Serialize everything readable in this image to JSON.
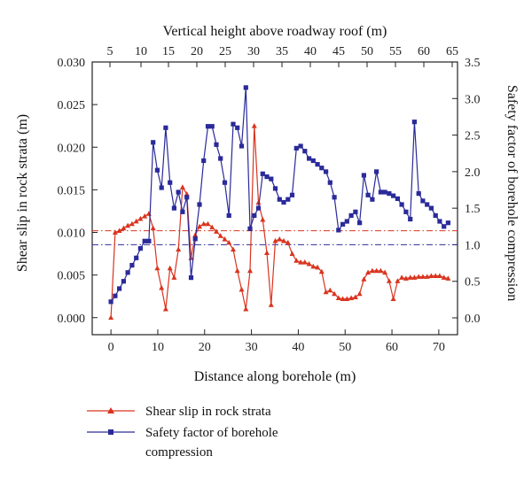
{
  "chart_data": {
    "type": "line",
    "xlabel": "Distance along borehole (m)",
    "x2label": "Vertical height above roadway roof (m)",
    "ylabel": "Shear slip in rock strata (m)",
    "y2label": "Safety factor of borehole compression",
    "xlim": [
      -4,
      74
    ],
    "x_ticks": [
      0,
      10,
      20,
      30,
      40,
      50,
      60,
      70
    ],
    "x2_ticks": [
      5,
      10,
      15,
      20,
      25,
      30,
      35,
      40,
      45,
      50,
      55,
      60,
      65
    ],
    "ylim": [
      -0.002,
      0.03
    ],
    "y_ticks": [
      0.0,
      0.005,
      0.01,
      0.015,
      0.02,
      0.025,
      0.03
    ],
    "y_tick_labels": [
      "0.000",
      "0.005",
      "0.010",
      "0.015",
      "0.020",
      "0.025",
      "0.030"
    ],
    "y2lim": [
      -0.23,
      3.5
    ],
    "y2_ticks": [
      0.0,
      0.5,
      1.0,
      1.5,
      2.0,
      2.5,
      3.0,
      3.5
    ],
    "y2_tick_labels": [
      "0.0",
      "0.5",
      "1.0",
      "1.5",
      "2.0",
      "2.5",
      "3.0",
      "3.5"
    ],
    "threshold_left": 0.0102,
    "threshold_right": 1.0,
    "colors": {
      "shear": "#d9341f",
      "safety": "#2a2a9a",
      "axis": "#222222"
    },
    "legend_position": "bottom-left",
    "series": [
      {
        "name": "Shear slip in rock strata",
        "axis": "left",
        "marker": "triangle",
        "x": [
          0,
          0.9,
          1.8,
          2.7,
          3.6,
          4.5,
          5.4,
          6.3,
          7.2,
          8.1,
          9,
          9.9,
          10.8,
          11.7,
          12.6,
          13.5,
          14.4,
          15.3,
          16.2,
          17.1,
          18,
          18.9,
          19.8,
          20.7,
          21.6,
          22.5,
          23.4,
          24.3,
          25.2,
          26.1,
          27,
          27.9,
          28.8,
          29.7,
          30.6,
          31.5,
          32.4,
          33.3,
          34.2,
          35.1,
          36,
          36.9,
          37.8,
          38.7,
          39.6,
          40.5,
          41.4,
          42.3,
          43.2,
          44.1,
          45,
          45.9,
          46.8,
          47.7,
          48.6,
          49.5,
          50.4,
          51.3,
          52.2,
          53.1,
          54,
          54.9,
          55.8,
          56.7,
          57.6,
          58.5,
          59.4,
          60.3,
          61.2,
          62.1,
          63,
          63.9,
          64.8,
          65.7,
          66.6,
          67.5,
          68.4,
          69.3,
          70.2,
          71.1,
          72
        ],
        "y": [
          0.0,
          0.01,
          0.0102,
          0.0105,
          0.0108,
          0.011,
          0.0113,
          0.0116,
          0.0119,
          0.0122,
          0.0105,
          0.0058,
          0.0035,
          0.001,
          0.0058,
          0.0047,
          0.008,
          0.0153,
          0.0145,
          0.007,
          0.0097,
          0.0107,
          0.011,
          0.011,
          0.0106,
          0.0101,
          0.0096,
          0.0092,
          0.0088,
          0.008,
          0.0055,
          0.0033,
          0.001,
          0.0055,
          0.0225,
          0.0135,
          0.0115,
          0.0076,
          0.0015,
          0.009,
          0.0092,
          0.009,
          0.0088,
          0.0075,
          0.0067,
          0.0065,
          0.0065,
          0.0063,
          0.006,
          0.0059,
          0.0054,
          0.003,
          0.0032,
          0.0028,
          0.0023,
          0.0022,
          0.0022,
          0.0023,
          0.0024,
          0.0028,
          0.0045,
          0.0053,
          0.0055,
          0.0055,
          0.0055,
          0.0053,
          0.0043,
          0.0022,
          0.0043,
          0.0047,
          0.0046,
          0.0047,
          0.0047,
          0.0048,
          0.0048,
          0.0048,
          0.0049,
          0.0049,
          0.0049,
          0.0047,
          0.0046
        ]
      },
      {
        "name": "Safety factor of borehole compression",
        "axis": "right",
        "marker": "square",
        "x": [
          0,
          0.9,
          1.8,
          2.7,
          3.6,
          4.5,
          5.4,
          6.3,
          7.2,
          8.1,
          9,
          9.9,
          10.8,
          11.7,
          12.6,
          13.5,
          14.4,
          15.3,
          16.2,
          17.1,
          18,
          18.9,
          19.8,
          20.7,
          21.6,
          22.5,
          23.4,
          24.3,
          25.2,
          26.1,
          27,
          27.9,
          28.8,
          29.7,
          30.6,
          31.5,
          32.4,
          33.3,
          34.2,
          35.1,
          36,
          36.9,
          37.8,
          38.7,
          39.6,
          40.5,
          41.4,
          42.3,
          43.2,
          44.1,
          45,
          45.9,
          46.8,
          47.7,
          48.6,
          49.5,
          50.4,
          51.3,
          52.2,
          53.1,
          54,
          54.9,
          55.8,
          56.7,
          57.6,
          58.5,
          59.4,
          60.3,
          61.2,
          62.1,
          63,
          63.9,
          64.8,
          65.7,
          66.6,
          67.5,
          68.4,
          69.3,
          70.2,
          71.1,
          72
        ],
        "y": [
          0.22,
          0.3,
          0.4,
          0.5,
          0.62,
          0.72,
          0.82,
          0.95,
          1.05,
          1.05,
          2.4,
          2.02,
          1.78,
          2.6,
          1.85,
          1.5,
          1.72,
          1.45,
          1.65,
          0.55,
          1.08,
          1.55,
          2.15,
          2.62,
          2.62,
          2.37,
          2.18,
          1.85,
          1.4,
          2.65,
          2.6,
          2.35,
          3.15,
          1.22,
          1.4,
          1.5,
          1.97,
          1.93,
          1.9,
          1.77,
          1.62,
          1.58,
          1.62,
          1.68,
          2.32,
          2.35,
          2.28,
          2.18,
          2.15,
          2.1,
          2.05,
          2.0,
          1.85,
          1.65,
          1.2,
          1.28,
          1.32,
          1.4,
          1.45,
          1.3,
          1.95,
          1.68,
          1.62,
          2.0,
          1.72,
          1.72,
          1.7,
          1.67,
          1.63,
          1.55,
          1.45,
          1.35,
          2.68,
          1.7,
          1.6,
          1.55,
          1.5,
          1.4,
          1.32,
          1.25,
          1.3
        ]
      }
    ]
  }
}
